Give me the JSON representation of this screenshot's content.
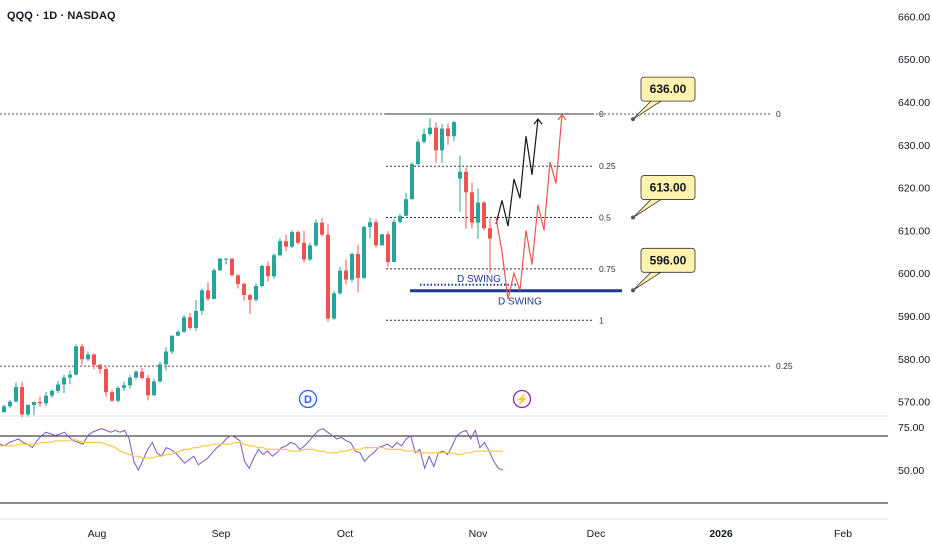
{
  "header": {
    "symbol_title": "QQQ · 1D · NASDAQ"
  },
  "colors": {
    "up": "#26a69a",
    "down": "#ef5350",
    "rsi": "#7e57c2",
    "rsi_ma": "#f7c948",
    "swing_line": "#1a3a8f",
    "projection_black": "#131722",
    "projection_red": "#ef5350",
    "callout_bg": "#fff3b0",
    "axis_text": "#131722"
  },
  "chart_data": {
    "type": "candlestick",
    "x_axis": {
      "ticks": [
        "Aug",
        "Sep",
        "Oct",
        "Nov",
        "Dec",
        "2026",
        "Feb"
      ],
      "bold_ticks": [
        "2026"
      ]
    },
    "y_axis": {
      "ticks": [
        "660.00",
        "650.00",
        "640.00",
        "630.00",
        "620.00",
        "610.00",
        "600.00",
        "590.00",
        "580.00",
        "570.00"
      ],
      "ylim": [
        566,
        663
      ]
    },
    "candles": [
      [
        567.5,
        569.3,
        567.5,
        568.9
      ],
      [
        568.9,
        570.4,
        568.5,
        570.0
      ],
      [
        570.0,
        574.5,
        569.9,
        573.4
      ],
      [
        573.4,
        574.6,
        566.4,
        567.0
      ],
      [
        567.0,
        569.4,
        566.5,
        569.2
      ],
      [
        569.2,
        570.0,
        566.8,
        569.9
      ],
      [
        569.9,
        571.2,
        568.8,
        569.6
      ],
      [
        569.6,
        572.3,
        568.9,
        571.4
      ],
      [
        571.4,
        572.9,
        570.9,
        572.5
      ],
      [
        572.5,
        574.8,
        572.0,
        574.0
      ],
      [
        574.0,
        576.3,
        572.0,
        575.6
      ],
      [
        575.6,
        577.2,
        574.1,
        576.3
      ],
      [
        576.3,
        583.4,
        576.1,
        582.9
      ],
      [
        582.9,
        583.5,
        578.6,
        579.9
      ],
      [
        579.9,
        581.7,
        579.5,
        581.0
      ],
      [
        581.0,
        581.3,
        577.6,
        578.6
      ],
      [
        578.6,
        578.8,
        576.5,
        577.6
      ],
      [
        577.6,
        578.4,
        571.2,
        572.2
      ],
      [
        572.2,
        572.7,
        570.0,
        570.2
      ],
      [
        570.2,
        573.6,
        569.8,
        573.2
      ],
      [
        573.2,
        574.7,
        572.5,
        573.8
      ],
      [
        573.8,
        576.2,
        573.0,
        575.6
      ],
      [
        575.6,
        577.3,
        575.2,
        577.0
      ],
      [
        577.0,
        577.8,
        575.2,
        575.5
      ],
      [
        575.5,
        576.2,
        570.3,
        571.5
      ],
      [
        571.5,
        575.3,
        571.3,
        574.7
      ],
      [
        574.7,
        579.3,
        574.5,
        578.7
      ],
      [
        578.7,
        582.7,
        577.3,
        581.7
      ],
      [
        581.7,
        585.4,
        581.1,
        585.4
      ],
      [
        585.4,
        586.7,
        585.3,
        586.3
      ],
      [
        586.3,
        590.2,
        586.1,
        589.7
      ],
      [
        589.7,
        590.7,
        586.8,
        587.2
      ],
      [
        587.2,
        593.7,
        586.5,
        591.2
      ],
      [
        591.2,
        596.4,
        590.2,
        596.0
      ],
      [
        596.0,
        597.9,
        593.5,
        594.0
      ],
      [
        594.0,
        601.2,
        593.9,
        600.7
      ],
      [
        600.7,
        603.6,
        600.5,
        603.4
      ],
      [
        603.4,
        603.5,
        602.0,
        603.4
      ],
      [
        603.4,
        603.5,
        599.3,
        599.5
      ],
      [
        599.5,
        599.8,
        596.4,
        597.5
      ],
      [
        597.5,
        597.9,
        593.6,
        594.9
      ],
      [
        594.9,
        595.2,
        590.5,
        593.8
      ],
      [
        593.8,
        597.6,
        593.3,
        597.0
      ],
      [
        597.0,
        602.0,
        596.7,
        601.7
      ],
      [
        601.7,
        602.8,
        598.0,
        599.3
      ],
      [
        599.3,
        604.6,
        598.7,
        604.2
      ],
      [
        604.2,
        608.2,
        603.9,
        607.5
      ],
      [
        607.5,
        609.0,
        605.2,
        606.2
      ],
      [
        606.2,
        610.0,
        605.9,
        609.6
      ],
      [
        609.6,
        610.0,
        606.7,
        607.1
      ],
      [
        607.1,
        609.9,
        602.5,
        603.2
      ],
      [
        603.2,
        607.1,
        602.8,
        606.5
      ],
      [
        606.5,
        612.6,
        606.2,
        611.8
      ],
      [
        611.8,
        612.9,
        608.6,
        609.0
      ],
      [
        609.0,
        611.4,
        588.7,
        589.4
      ],
      [
        589.4,
        595.8,
        589.1,
        595.3
      ],
      [
        595.3,
        601.5,
        595.0,
        600.6
      ],
      [
        600.6,
        603.2,
        597.4,
        598.5
      ],
      [
        598.5,
        604.8,
        597.9,
        604.5
      ],
      [
        604.5,
        606.6,
        595.5,
        598.9
      ],
      [
        598.9,
        611.1,
        598.6,
        610.8
      ],
      [
        610.8,
        613.0,
        608.2,
        611.9
      ],
      [
        611.9,
        612.6,
        606.0,
        606.5
      ],
      [
        606.5,
        609.2,
        606.5,
        609.1
      ],
      [
        609.1,
        609.8,
        601.5,
        602.6
      ],
      [
        602.6,
        612.7,
        602.6,
        612.0
      ],
      [
        612.0,
        613.9,
        611.6,
        613.4
      ],
      [
        613.4,
        618.8,
        613.3,
        617.3
      ],
      [
        617.3,
        625.9,
        617.2,
        625.5
      ],
      [
        625.5,
        631.3,
        625.2,
        630.7
      ],
      [
        630.7,
        633.8,
        630.3,
        632.5
      ],
      [
        632.5,
        636.2,
        632.1,
        634.0
      ],
      [
        634.0,
        635.2,
        625.8,
        628.7
      ],
      [
        628.7,
        634.9,
        625.8,
        633.8
      ],
      [
        633.8,
        635.0,
        630.0,
        632.0
      ],
      [
        632.0,
        635.6,
        630.8,
        635.3
      ],
      [
        622.1,
        627.5,
        614.4,
        623.7
      ],
      [
        623.7,
        624.7,
        610.4,
        618.9
      ],
      [
        618.9,
        621.2,
        610.5,
        611.8
      ],
      [
        611.8,
        619.8,
        608.0,
        616.5
      ],
      [
        616.5,
        616.8,
        610.0,
        610.5
      ],
      [
        610.5,
        612.9,
        600.1,
        608.1
      ]
    ],
    "fib_short": [
      {
        "label": "0",
        "value": 637.2
      },
      {
        "label": "0.25",
        "value": 625.0
      },
      {
        "label": "0.5",
        "value": 613.0
      },
      {
        "label": "0.75",
        "value": 601.0
      },
      {
        "label": "1",
        "value": 589.0
      }
    ],
    "fib_long": [
      {
        "label": "0",
        "value": 637.2
      },
      {
        "label": "0.25",
        "value": 578.3
      }
    ],
    "callouts": [
      {
        "label": "636.00",
        "value": 636.0
      },
      {
        "label": "613.00",
        "value": 613.0
      },
      {
        "label": "596.00",
        "value": 596.0
      }
    ],
    "swing": {
      "labels": [
        "D SWING",
        "D SWING"
      ],
      "short_level": 597.3,
      "long_level": 595.9
    },
    "projection_black": [
      [
        82,
        611.5
      ],
      [
        83,
        617.0
      ],
      [
        84,
        611.0
      ],
      [
        85,
        622.0
      ],
      [
        86,
        617.5
      ],
      [
        87,
        632.0
      ],
      [
        88,
        623.0
      ],
      [
        89,
        636.0
      ]
    ],
    "projection_red": [
      [
        82,
        613.0
      ],
      [
        83,
        605.0
      ],
      [
        84,
        594.0
      ],
      [
        85,
        600.0
      ],
      [
        86,
        596.0
      ],
      [
        87,
        610.0
      ],
      [
        88,
        602.0
      ],
      [
        89,
        616.0
      ],
      [
        90,
        610.0
      ],
      [
        91,
        626.0
      ],
      [
        92,
        621.0
      ],
      [
        93,
        637.0
      ]
    ],
    "event_markers": [
      {
        "text": "D",
        "index": 46
      },
      {
        "text": "⚡",
        "index": 78
      }
    ],
    "rsi": {
      "ticks": [
        "75.00",
        "50.00"
      ],
      "ylim": [
        40,
        80
      ],
      "values": [
        65,
        64,
        66,
        67,
        68,
        66,
        65,
        63,
        67,
        70,
        72,
        71,
        70,
        71,
        72,
        69,
        67,
        66,
        65,
        70,
        72,
        73,
        74,
        73,
        72,
        73,
        72,
        73,
        68,
        55,
        50,
        56,
        62,
        66,
        60,
        58,
        63,
        62,
        60,
        57,
        54,
        56,
        58,
        53,
        55,
        57,
        60,
        63,
        65,
        68,
        70,
        69,
        67,
        55,
        51,
        57,
        62,
        59,
        61,
        58,
        60,
        63,
        64,
        66,
        65,
        62,
        64,
        67,
        70,
        73,
        74,
        72,
        70,
        68,
        69,
        67,
        66,
        61,
        60,
        55,
        58,
        60,
        63,
        64,
        65,
        63,
        66,
        64,
        68,
        70,
        60,
        62,
        51,
        58,
        52,
        60,
        61,
        59,
        64,
        70,
        72,
        73,
        68,
        73,
        63,
        66,
        61,
        55,
        51,
        50
      ],
      "ma": [
        64,
        64,
        64,
        64,
        65,
        65,
        65,
        65,
        65,
        66,
        66,
        66,
        67,
        67,
        67,
        67,
        68,
        67,
        66,
        66,
        66,
        66,
        66,
        65,
        64,
        63,
        61,
        60,
        59,
        58,
        58,
        57,
        57,
        57,
        58,
        58,
        59,
        59,
        60,
        61,
        62,
        62,
        63,
        63,
        64,
        64,
        65,
        65,
        65,
        65,
        65,
        66,
        66,
        65,
        64,
        64,
        63,
        63,
        62,
        62,
        62,
        62,
        62,
        61,
        61,
        61,
        62,
        62,
        62,
        61,
        61,
        60,
        60,
        60,
        61,
        61,
        62,
        62,
        62,
        63,
        63,
        63,
        63,
        63,
        62,
        62,
        62,
        62,
        61,
        61,
        61,
        60,
        60,
        60,
        60,
        60,
        60,
        60,
        60,
        59,
        59,
        60,
        60,
        61,
        61,
        61,
        61,
        61,
        61,
        61
      ]
    }
  }
}
